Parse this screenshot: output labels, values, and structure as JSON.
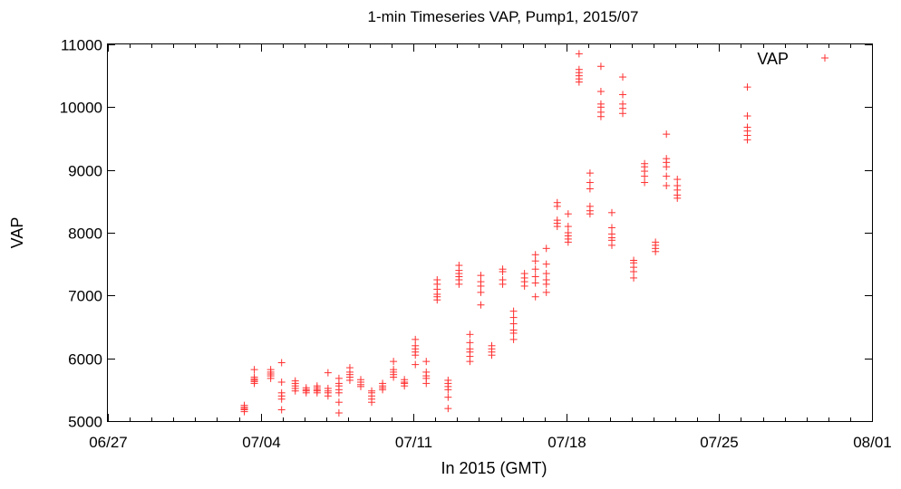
{
  "chart_data": {
    "type": "scatter",
    "title": "1-min Timeseries VAP, Pump1, 2015/07",
    "xlabel": "In 2015 (GMT)",
    "ylabel": "VAP",
    "x_axis_type": "date",
    "xlim": [
      "2015-06-27",
      "2015-08-01"
    ],
    "ylim": [
      5000,
      11000
    ],
    "x_ticks": [
      {
        "date": "2015-06-27",
        "label": "06/27"
      },
      {
        "date": "2015-07-04",
        "label": "07/04"
      },
      {
        "date": "2015-07-11",
        "label": "07/11"
      },
      {
        "date": "2015-07-18",
        "label": "07/18"
      },
      {
        "date": "2015-07-25",
        "label": "07/25"
      },
      {
        "date": "2015-08-01",
        "label": "08/01"
      }
    ],
    "y_ticks": [
      5000,
      6000,
      7000,
      8000,
      9000,
      10000,
      11000
    ],
    "grid": false,
    "legend": {
      "position": "top-right",
      "entries": [
        "VAP"
      ]
    },
    "series_color": "#ff3030",
    "marker": "plus",
    "series": [
      {
        "name": "VAP",
        "points": [
          [
            "2015-07-03 06:00",
            5150
          ],
          [
            "2015-07-03 06:00",
            5180
          ],
          [
            "2015-07-03 06:00",
            5200
          ],
          [
            "2015-07-03 06:00",
            5220
          ],
          [
            "2015-07-03 06:00",
            5250
          ],
          [
            "2015-07-03 17:00",
            5600
          ],
          [
            "2015-07-03 17:00",
            5630
          ],
          [
            "2015-07-03 17:00",
            5650
          ],
          [
            "2015-07-03 17:00",
            5670
          ],
          [
            "2015-07-03 17:00",
            5700
          ],
          [
            "2015-07-03 17:00",
            5820
          ],
          [
            "2015-07-04 11:00",
            5680
          ],
          [
            "2015-07-04 11:00",
            5720
          ],
          [
            "2015-07-04 11:00",
            5750
          ],
          [
            "2015-07-04 11:00",
            5780
          ],
          [
            "2015-07-04 11:00",
            5820
          ],
          [
            "2015-07-04 23:00",
            5180
          ],
          [
            "2015-07-04 23:00",
            5350
          ],
          [
            "2015-07-04 23:00",
            5400
          ],
          [
            "2015-07-04 23:00",
            5450
          ],
          [
            "2015-07-04 23:00",
            5620
          ],
          [
            "2015-07-04 23:00",
            5930
          ],
          [
            "2015-07-05 14:00",
            5480
          ],
          [
            "2015-07-05 14:00",
            5520
          ],
          [
            "2015-07-05 14:00",
            5560
          ],
          [
            "2015-07-05 14:00",
            5600
          ],
          [
            "2015-07-05 14:00",
            5640
          ],
          [
            "2015-07-06 02:00",
            5450
          ],
          [
            "2015-07-06 02:00",
            5480
          ],
          [
            "2015-07-06 02:00",
            5500
          ],
          [
            "2015-07-06 02:00",
            5530
          ],
          [
            "2015-07-06 14:00",
            5450
          ],
          [
            "2015-07-06 14:00",
            5480
          ],
          [
            "2015-07-06 14:00",
            5500
          ],
          [
            "2015-07-06 14:00",
            5530
          ],
          [
            "2015-07-06 14:00",
            5560
          ],
          [
            "2015-07-07 02:00",
            5400
          ],
          [
            "2015-07-07 02:00",
            5450
          ],
          [
            "2015-07-07 02:00",
            5480
          ],
          [
            "2015-07-07 02:00",
            5520
          ],
          [
            "2015-07-07 02:00",
            5770
          ],
          [
            "2015-07-07 14:00",
            5130
          ],
          [
            "2015-07-07 14:00",
            5300
          ],
          [
            "2015-07-07 14:00",
            5450
          ],
          [
            "2015-07-07 14:00",
            5500
          ],
          [
            "2015-07-07 14:00",
            5560
          ],
          [
            "2015-07-07 14:00",
            5600
          ],
          [
            "2015-07-07 14:00",
            5680
          ],
          [
            "2015-07-08 02:00",
            5650
          ],
          [
            "2015-07-08 02:00",
            5700
          ],
          [
            "2015-07-08 02:00",
            5740
          ],
          [
            "2015-07-08 02:00",
            5780
          ],
          [
            "2015-07-08 02:00",
            5850
          ],
          [
            "2015-07-08 14:00",
            5550
          ],
          [
            "2015-07-08 14:00",
            5580
          ],
          [
            "2015-07-08 14:00",
            5620
          ],
          [
            "2015-07-08 14:00",
            5660
          ],
          [
            "2015-07-09 02:00",
            5300
          ],
          [
            "2015-07-09 02:00",
            5350
          ],
          [
            "2015-07-09 02:00",
            5400
          ],
          [
            "2015-07-09 02:00",
            5450
          ],
          [
            "2015-07-09 02:00",
            5480
          ],
          [
            "2015-07-09 14:00",
            5500
          ],
          [
            "2015-07-09 14:00",
            5530
          ],
          [
            "2015-07-09 14:00",
            5560
          ],
          [
            "2015-07-09 14:00",
            5600
          ],
          [
            "2015-07-10 02:00",
            5700
          ],
          [
            "2015-07-10 02:00",
            5740
          ],
          [
            "2015-07-10 02:00",
            5780
          ],
          [
            "2015-07-10 02:00",
            5820
          ],
          [
            "2015-07-10 02:00",
            5950
          ],
          [
            "2015-07-10 14:00",
            5560
          ],
          [
            "2015-07-10 14:00",
            5600
          ],
          [
            "2015-07-10 14:00",
            5620
          ],
          [
            "2015-07-10 14:00",
            5660
          ],
          [
            "2015-07-11 02:00",
            5900
          ],
          [
            "2015-07-11 02:00",
            6050
          ],
          [
            "2015-07-11 02:00",
            6100
          ],
          [
            "2015-07-11 02:00",
            6150
          ],
          [
            "2015-07-11 02:00",
            6200
          ],
          [
            "2015-07-11 02:00",
            6300
          ],
          [
            "2015-07-11 14:00",
            5600
          ],
          [
            "2015-07-11 14:00",
            5680
          ],
          [
            "2015-07-11 14:00",
            5720
          ],
          [
            "2015-07-11 14:00",
            5780
          ],
          [
            "2015-07-11 14:00",
            5950
          ],
          [
            "2015-07-12 02:00",
            6930
          ],
          [
            "2015-07-12 02:00",
            6980
          ],
          [
            "2015-07-12 02:00",
            7020
          ],
          [
            "2015-07-12 02:00",
            7100
          ],
          [
            "2015-07-12 02:00",
            7180
          ],
          [
            "2015-07-12 02:00",
            7250
          ],
          [
            "2015-07-12 14:00",
            5200
          ],
          [
            "2015-07-12 14:00",
            5380
          ],
          [
            "2015-07-12 14:00",
            5500
          ],
          [
            "2015-07-12 14:00",
            5550
          ],
          [
            "2015-07-12 14:00",
            5600
          ],
          [
            "2015-07-12 14:00",
            5650
          ],
          [
            "2015-07-13 02:00",
            7180
          ],
          [
            "2015-07-13 02:00",
            7250
          ],
          [
            "2015-07-13 02:00",
            7300
          ],
          [
            "2015-07-13 02:00",
            7350
          ],
          [
            "2015-07-13 02:00",
            7400
          ],
          [
            "2015-07-13 02:00",
            7480
          ],
          [
            "2015-07-13 14:00",
            5950
          ],
          [
            "2015-07-13 14:00",
            6030
          ],
          [
            "2015-07-13 14:00",
            6100
          ],
          [
            "2015-07-13 14:00",
            6150
          ],
          [
            "2015-07-13 14:00",
            6250
          ],
          [
            "2015-07-13 14:00",
            6380
          ],
          [
            "2015-07-14 02:00",
            6850
          ],
          [
            "2015-07-14 02:00",
            7050
          ],
          [
            "2015-07-14 02:00",
            7150
          ],
          [
            "2015-07-14 02:00",
            7220
          ],
          [
            "2015-07-14 02:00",
            7320
          ],
          [
            "2015-07-14 14:00",
            6050
          ],
          [
            "2015-07-14 14:00",
            6100
          ],
          [
            "2015-07-14 14:00",
            6150
          ],
          [
            "2015-07-14 14:00",
            6200
          ],
          [
            "2015-07-15 02:00",
            7180
          ],
          [
            "2015-07-15 02:00",
            7250
          ],
          [
            "2015-07-15 02:00",
            7380
          ],
          [
            "2015-07-15 02:00",
            7420
          ],
          [
            "2015-07-15 14:00",
            6300
          ],
          [
            "2015-07-15 14:00",
            6400
          ],
          [
            "2015-07-15 14:00",
            6450
          ],
          [
            "2015-07-15 14:00",
            6550
          ],
          [
            "2015-07-15 14:00",
            6650
          ],
          [
            "2015-07-15 14:00",
            6750
          ],
          [
            "2015-07-16 02:00",
            7150
          ],
          [
            "2015-07-16 02:00",
            7220
          ],
          [
            "2015-07-16 02:00",
            7280
          ],
          [
            "2015-07-16 02:00",
            7350
          ],
          [
            "2015-07-16 14:00",
            6980
          ],
          [
            "2015-07-16 14:00",
            7200
          ],
          [
            "2015-07-16 14:00",
            7300
          ],
          [
            "2015-07-16 14:00",
            7420
          ],
          [
            "2015-07-16 14:00",
            7550
          ],
          [
            "2015-07-16 14:00",
            7650
          ],
          [
            "2015-07-17 02:00",
            7050
          ],
          [
            "2015-07-17 02:00",
            7180
          ],
          [
            "2015-07-17 02:00",
            7250
          ],
          [
            "2015-07-17 02:00",
            7350
          ],
          [
            "2015-07-17 02:00",
            7500
          ],
          [
            "2015-07-17 02:00",
            7750
          ],
          [
            "2015-07-17 14:00",
            8100
          ],
          [
            "2015-07-17 14:00",
            8150
          ],
          [
            "2015-07-17 14:00",
            8200
          ],
          [
            "2015-07-17 14:00",
            8420
          ],
          [
            "2015-07-17 14:00",
            8480
          ],
          [
            "2015-07-18 02:00",
            7850
          ],
          [
            "2015-07-18 02:00",
            7900
          ],
          [
            "2015-07-18 02:00",
            7950
          ],
          [
            "2015-07-18 02:00",
            8000
          ],
          [
            "2015-07-18 02:00",
            8100
          ],
          [
            "2015-07-18 02:00",
            8300
          ],
          [
            "2015-07-18 14:00",
            10400
          ],
          [
            "2015-07-18 14:00",
            10450
          ],
          [
            "2015-07-18 14:00",
            10500
          ],
          [
            "2015-07-18 14:00",
            10550
          ],
          [
            "2015-07-18 14:00",
            10600
          ],
          [
            "2015-07-18 14:00",
            10850
          ],
          [
            "2015-07-19 02:00",
            8300
          ],
          [
            "2015-07-19 02:00",
            8350
          ],
          [
            "2015-07-19 02:00",
            8420
          ],
          [
            "2015-07-19 02:00",
            8700
          ],
          [
            "2015-07-19 02:00",
            8800
          ],
          [
            "2015-07-19 02:00",
            8950
          ],
          [
            "2015-07-19 14:00",
            9850
          ],
          [
            "2015-07-19 14:00",
            9920
          ],
          [
            "2015-07-19 14:00",
            10000
          ],
          [
            "2015-07-19 14:00",
            10050
          ],
          [
            "2015-07-19 14:00",
            10250
          ],
          [
            "2015-07-19 14:00",
            10650
          ],
          [
            "2015-07-20 02:00",
            7800
          ],
          [
            "2015-07-20 02:00",
            7880
          ],
          [
            "2015-07-20 02:00",
            7920
          ],
          [
            "2015-07-20 02:00",
            7980
          ],
          [
            "2015-07-20 02:00",
            8080
          ],
          [
            "2015-07-20 02:00",
            8320
          ],
          [
            "2015-07-20 14:00",
            9900
          ],
          [
            "2015-07-20 14:00",
            9980
          ],
          [
            "2015-07-20 14:00",
            10050
          ],
          [
            "2015-07-20 14:00",
            10200
          ],
          [
            "2015-07-20 14:00",
            10480
          ],
          [
            "2015-07-21 02:00",
            7280
          ],
          [
            "2015-07-21 02:00",
            7380
          ],
          [
            "2015-07-21 02:00",
            7450
          ],
          [
            "2015-07-21 02:00",
            7520
          ],
          [
            "2015-07-21 02:00",
            7560
          ],
          [
            "2015-07-21 14:00",
            8800
          ],
          [
            "2015-07-21 14:00",
            8900
          ],
          [
            "2015-07-21 14:00",
            8980
          ],
          [
            "2015-07-21 14:00",
            9050
          ],
          [
            "2015-07-21 14:00",
            9100
          ],
          [
            "2015-07-22 02:00",
            7700
          ],
          [
            "2015-07-22 02:00",
            7750
          ],
          [
            "2015-07-22 02:00",
            7800
          ],
          [
            "2015-07-22 02:00",
            7850
          ],
          [
            "2015-07-22 14:00",
            8750
          ],
          [
            "2015-07-22 14:00",
            8900
          ],
          [
            "2015-07-22 14:00",
            9050
          ],
          [
            "2015-07-22 14:00",
            9120
          ],
          [
            "2015-07-22 14:00",
            9180
          ],
          [
            "2015-07-22 14:00",
            9570
          ],
          [
            "2015-07-23 02:00",
            8550
          ],
          [
            "2015-07-23 02:00",
            8600
          ],
          [
            "2015-07-23 02:00",
            8680
          ],
          [
            "2015-07-23 02:00",
            8750
          ],
          [
            "2015-07-23 02:00",
            8850
          ],
          [
            "2015-07-26 07:00",
            9480
          ],
          [
            "2015-07-26 07:00",
            9550
          ],
          [
            "2015-07-26 07:00",
            9620
          ],
          [
            "2015-07-26 07:00",
            9680
          ],
          [
            "2015-07-26 07:00",
            9860
          ],
          [
            "2015-07-26 07:00",
            10320
          ]
        ]
      }
    ]
  }
}
